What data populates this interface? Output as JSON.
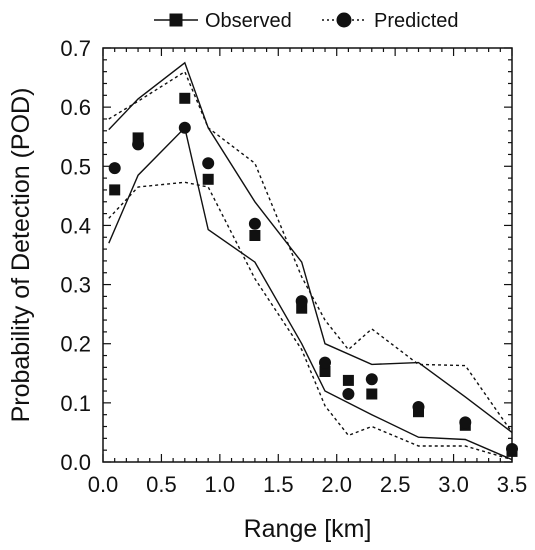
{
  "chart_data": {
    "type": "scatter",
    "xlabel": "Range [km]",
    "ylabel": "Probability of Detection (POD)",
    "xlim": [
      0.0,
      3.5
    ],
    "ylim": [
      0.0,
      0.7
    ],
    "xticks": [
      "0.0",
      "0.5",
      "1.0",
      "1.5",
      "2.0",
      "2.5",
      "3.0",
      "3.5"
    ],
    "yticks": [
      "0.0",
      "0.1",
      "0.2",
      "0.3",
      "0.4",
      "0.5",
      "0.6",
      "0.7"
    ],
    "grid": false,
    "legend_position": "top",
    "series": [
      {
        "name": "Observed",
        "marker": "square",
        "line_style": "solid",
        "color": "#111111",
        "points": [
          [
            0.1,
            0.46
          ],
          [
            0.3,
            0.548
          ],
          [
            0.7,
            0.615
          ],
          [
            0.9,
            0.478
          ],
          [
            1.3,
            0.383
          ],
          [
            1.7,
            0.26
          ],
          [
            1.9,
            0.153
          ],
          [
            2.1,
            0.138
          ],
          [
            2.3,
            0.115
          ],
          [
            2.7,
            0.085
          ],
          [
            3.1,
            0.062
          ],
          [
            3.5,
            0.018
          ]
        ],
        "band_upper": [
          [
            0.05,
            0.562
          ],
          [
            0.3,
            0.614
          ],
          [
            0.7,
            0.675
          ],
          [
            0.9,
            0.565
          ],
          [
            1.3,
            0.44
          ],
          [
            1.7,
            0.338
          ],
          [
            1.9,
            0.2
          ],
          [
            2.3,
            0.165
          ],
          [
            2.7,
            0.168
          ],
          [
            3.1,
            0.11
          ],
          [
            3.5,
            0.05
          ]
        ],
        "band_lower": [
          [
            0.05,
            0.37
          ],
          [
            0.3,
            0.485
          ],
          [
            0.7,
            0.565
          ],
          [
            0.9,
            0.393
          ],
          [
            1.3,
            0.338
          ],
          [
            1.7,
            0.2
          ],
          [
            1.9,
            0.12
          ],
          [
            2.3,
            0.08
          ],
          [
            2.7,
            0.042
          ],
          [
            3.1,
            0.038
          ],
          [
            3.5,
            0.004
          ]
        ]
      },
      {
        "name": "Predicted",
        "marker": "circle",
        "line_style": "dotted",
        "color": "#111111",
        "points": [
          [
            0.1,
            0.497
          ],
          [
            0.3,
            0.537
          ],
          [
            0.7,
            0.565
          ],
          [
            0.9,
            0.505
          ],
          [
            1.3,
            0.403
          ],
          [
            1.7,
            0.272
          ],
          [
            1.9,
            0.168
          ],
          [
            2.1,
            0.115
          ],
          [
            2.3,
            0.14
          ],
          [
            2.7,
            0.093
          ],
          [
            3.1,
            0.067
          ],
          [
            3.5,
            0.022
          ]
        ],
        "band_upper": [
          [
            0.05,
            0.58
          ],
          [
            0.3,
            0.61
          ],
          [
            0.7,
            0.66
          ],
          [
            0.9,
            0.565
          ],
          [
            1.3,
            0.505
          ],
          [
            1.7,
            0.313
          ],
          [
            1.9,
            0.24
          ],
          [
            2.1,
            0.19
          ],
          [
            2.3,
            0.225
          ],
          [
            2.7,
            0.165
          ],
          [
            3.1,
            0.163
          ],
          [
            3.5,
            0.05
          ]
        ],
        "band_lower": [
          [
            0.05,
            0.412
          ],
          [
            0.3,
            0.465
          ],
          [
            0.7,
            0.473
          ],
          [
            0.9,
            0.465
          ],
          [
            1.3,
            0.31
          ],
          [
            1.7,
            0.19
          ],
          [
            1.9,
            0.095
          ],
          [
            2.1,
            0.045
          ],
          [
            2.3,
            0.06
          ],
          [
            2.7,
            0.027
          ],
          [
            3.1,
            0.027
          ],
          [
            3.5,
            0.004
          ]
        ]
      }
    ]
  }
}
